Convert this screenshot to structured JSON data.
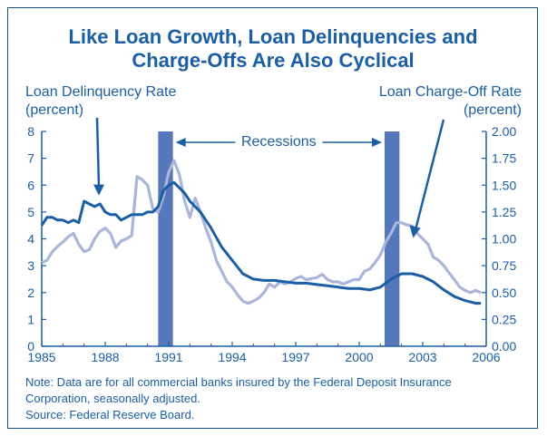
{
  "chart_data": {
    "type": "line",
    "title_line1": "Like Loan Growth, Loan Delinquencies and",
    "title_line2": "Charge-Offs Are Also Cyclical",
    "left_axis_label_line1": "Loan Delinquency Rate",
    "left_axis_label_line2": "(percent)",
    "right_axis_label_line1": "Loan Charge-Off Rate",
    "right_axis_label_line2": "(percent)",
    "recessions_label": "Recessions",
    "recessions": [
      [
        1990.5,
        1991.2
      ],
      [
        2001.2,
        2001.9
      ]
    ],
    "xlim": [
      1985,
      2006
    ],
    "ylim_left": [
      0,
      8
    ],
    "ylim_right": [
      0,
      2
    ],
    "x_tick_labels": [
      "1985",
      "1988",
      "1991",
      "1994",
      "1997",
      "2000",
      "2003",
      "2006"
    ],
    "x_ticks": [
      1985,
      1988,
      1991,
      1994,
      1997,
      2000,
      2003,
      2006
    ],
    "left_tick_labels": [
      "0",
      "1",
      "2",
      "3",
      "4",
      "5",
      "6",
      "7",
      "8"
    ],
    "right_tick_labels": [
      "0.00",
      "0.25",
      "0.50",
      "0.75",
      "1.00",
      "1.25",
      "1.50",
      "1.75",
      "2.00"
    ],
    "series": [
      {
        "name": "Loan Delinquency Rate",
        "axis": "left",
        "color": "#1a5ea8",
        "x": [
          1985.0,
          1985.25,
          1985.5,
          1985.75,
          1986.0,
          1986.25,
          1986.5,
          1986.75,
          1987.0,
          1987.25,
          1987.5,
          1987.75,
          1988.0,
          1988.25,
          1988.5,
          1988.75,
          1989.0,
          1989.25,
          1989.5,
          1989.75,
          1990.0,
          1990.25,
          1990.5,
          1990.75,
          1991.0,
          1991.25,
          1991.5,
          1991.75,
          1992.0,
          1992.5,
          1993.0,
          1993.5,
          1994.0,
          1994.5,
          1995.0,
          1995.5,
          1996.0,
          1996.5,
          1997.0,
          1997.5,
          1998.0,
          1998.5,
          1999.0,
          1999.5,
          2000.0,
          2000.5,
          2001.0,
          2001.5,
          2002.0,
          2002.5,
          2003.0,
          2003.5,
          2004.0,
          2004.5,
          2005.0,
          2005.5,
          2005.75
        ],
        "y": [
          4.5,
          4.8,
          4.8,
          4.7,
          4.7,
          4.6,
          4.7,
          4.6,
          5.4,
          5.3,
          5.2,
          5.3,
          5.0,
          4.9,
          4.9,
          4.7,
          4.8,
          4.9,
          4.9,
          4.9,
          5.0,
          5.0,
          5.2,
          5.8,
          6.0,
          6.1,
          5.9,
          5.7,
          5.4,
          5.0,
          4.4,
          3.7,
          3.2,
          2.7,
          2.5,
          2.45,
          2.45,
          2.4,
          2.35,
          2.35,
          2.3,
          2.25,
          2.2,
          2.15,
          2.15,
          2.1,
          2.2,
          2.5,
          2.7,
          2.7,
          2.6,
          2.4,
          2.1,
          1.85,
          1.7,
          1.6,
          1.6
        ]
      },
      {
        "name": "Loan Charge-Off Rate",
        "axis": "right",
        "color": "#aab5dc",
        "x": [
          1985.0,
          1985.25,
          1985.5,
          1985.75,
          1986.0,
          1986.25,
          1986.5,
          1986.75,
          1987.0,
          1987.25,
          1987.5,
          1987.75,
          1988.0,
          1988.25,
          1988.5,
          1988.75,
          1989.0,
          1989.25,
          1989.5,
          1989.75,
          1990.0,
          1990.25,
          1990.5,
          1990.75,
          1991.0,
          1991.25,
          1991.5,
          1991.75,
          1992.0,
          1992.25,
          1992.5,
          1992.75,
          1993.0,
          1993.25,
          1993.5,
          1993.75,
          1994.0,
          1994.25,
          1994.5,
          1994.75,
          1995.0,
          1995.25,
          1995.5,
          1995.75,
          1996.0,
          1996.25,
          1996.5,
          1996.75,
          1997.0,
          1997.25,
          1997.5,
          1997.75,
          1998.0,
          1998.25,
          1998.5,
          1998.75,
          1999.0,
          1999.25,
          1999.5,
          1999.75,
          2000.0,
          2000.25,
          2000.5,
          2000.75,
          2001.0,
          2001.25,
          2001.5,
          2001.75,
          2002.0,
          2002.25,
          2002.5,
          2002.75,
          2003.0,
          2003.25,
          2003.5,
          2003.75,
          2004.0,
          2004.25,
          2004.5,
          2004.75,
          2005.0,
          2005.25,
          2005.5,
          2005.75
        ],
        "y": [
          0.78,
          0.8,
          0.88,
          0.93,
          0.97,
          1.02,
          1.05,
          0.95,
          0.88,
          0.9,
          1.0,
          1.07,
          1.1,
          1.05,
          0.92,
          0.98,
          1.0,
          1.03,
          1.58,
          1.55,
          1.5,
          1.28,
          1.25,
          1.4,
          1.62,
          1.73,
          1.6,
          1.35,
          1.2,
          1.38,
          1.25,
          1.1,
          0.97,
          0.8,
          0.7,
          0.6,
          0.55,
          0.48,
          0.42,
          0.4,
          0.42,
          0.45,
          0.5,
          0.58,
          0.55,
          0.6,
          0.58,
          0.6,
          0.63,
          0.65,
          0.62,
          0.63,
          0.64,
          0.67,
          0.62,
          0.6,
          0.6,
          0.58,
          0.6,
          0.62,
          0.62,
          0.7,
          0.72,
          0.78,
          0.85,
          0.97,
          1.05,
          1.15,
          1.15,
          1.13,
          1.12,
          1.05,
          1.0,
          0.95,
          0.83,
          0.8,
          0.75,
          0.68,
          0.62,
          0.55,
          0.52,
          0.5,
          0.52,
          0.5
        ]
      }
    ],
    "note_line1": "Note: Data are for all commercial banks insured by the Federal Deposit Insurance",
    "note_line2": "Corporation, seasonally adjusted.",
    "source": "Source: Federal Reserve Board."
  }
}
